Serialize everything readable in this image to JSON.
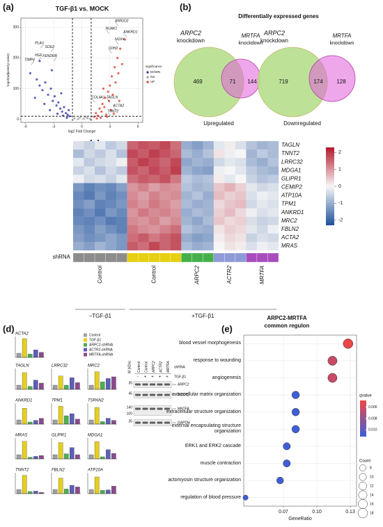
{
  "panel_labels": [
    "(a)",
    "(b)",
    "(c)",
    "(d)",
    "(e)"
  ],
  "chart_data": [
    {
      "type": "scatter",
      "title": "TGF-β1 vs. MOCK",
      "xlabel": "log2 Fold Change",
      "ylabel": "-log10(adjusted p-value)",
      "xlim": [
        -6.5,
        6.5
      ],
      "ylim": [
        -10,
        330
      ],
      "xticks": [
        -6,
        -3,
        0,
        3,
        6
      ],
      "yticks": [
        0,
        100,
        200,
        300
      ],
      "grid": true,
      "threshold_x": [
        -1,
        1
      ],
      "threshold_y": 10,
      "legend_title": "significance",
      "series": [
        {
          "name": "DOWN",
          "color": "#2a2fa6",
          "x": [
            -5.5,
            -4.8,
            -4.5,
            -4.2,
            -3.9,
            -3.6,
            -3.3,
            -3.1,
            -2.9,
            -2.7,
            -2.5,
            -2.3,
            -2.1,
            -1.9,
            -1.7,
            -1.5,
            -1.4,
            -1.3,
            -2.0,
            -2.6,
            -3.4,
            -4.0,
            -5.0,
            -2.2,
            -1.6,
            -4.5,
            -3.2
          ],
          "y": [
            150,
            130,
            110,
            95,
            120,
            80,
            100,
            60,
            75,
            45,
            55,
            35,
            25,
            40,
            20,
            15,
            30,
            10,
            12,
            18,
            30,
            50,
            70,
            85,
            5,
            190,
            160
          ]
        },
        {
          "name": "NS",
          "color": "#9a9a9a",
          "x": [
            -0.8,
            -0.4,
            0.2,
            0.6,
            -0.2,
            0.9,
            0.4
          ],
          "y": [
            3,
            1,
            2,
            4,
            6,
            1,
            8
          ]
        },
        {
          "name": "UP",
          "color": "#d8352a",
          "x": [
            1.3,
            1.5,
            1.7,
            1.9,
            2.1,
            2.2,
            2.4,
            2.5,
            2.6,
            2.8,
            2.9,
            3.0,
            3.1,
            3.2,
            3.3,
            3.5,
            3.6,
            3.8,
            3.9,
            4.1,
            4.3,
            4.6,
            2.0,
            1.6,
            2.7,
            3.4,
            4.0,
            2.3
          ],
          "y": [
            8,
            20,
            12,
            35,
            25,
            50,
            40,
            70,
            15,
            90,
            60,
            110,
            30,
            140,
            80,
            170,
            120,
            200,
            150,
            230,
            180,
            260,
            5,
            3,
            8,
            18,
            60,
            100
          ]
        }
      ],
      "gene_labels": [
        {
          "text": "PLAU",
          "x": -4.4,
          "y": 232
        },
        {
          "text": "SOD2",
          "x": -3.3,
          "y": 220
        },
        {
          "text": "HGF",
          "x": -4.6,
          "y": 193
        },
        {
          "text": "TIMP4",
          "x": -5.4,
          "y": 178
        },
        {
          "text": "FENDRR",
          "x": -3.0,
          "y": 190
        },
        {
          "text": "AMIGO2",
          "x": 3.9,
          "y": 305
        },
        {
          "text": "NUAK1",
          "x": 2.9,
          "y": 280
        },
        {
          "text": "ANKRD1",
          "x": 4.8,
          "y": 268
        },
        {
          "text": "NOX4",
          "x": 3.9,
          "y": 245
        },
        {
          "text": "CDH2",
          "x": 3.2,
          "y": 215
        },
        {
          "text": "COL4A1",
          "x": 1.4,
          "y": 55
        },
        {
          "text": "TAGLN",
          "x": 3.0,
          "y": 55
        },
        {
          "text": "ACTA2",
          "x": 3.7,
          "y": 28
        },
        {
          "text": "TNNT2",
          "x": 3.1,
          "y": 10
        }
      ]
    },
    {
      "type": "venn",
      "title": "Differentially expressed genes",
      "left_set": [
        "ARPC2",
        "knockdown"
      ],
      "right_set": [
        "MRTFA",
        "knockdown"
      ],
      "left_color": "#b6df8c",
      "right_color": "#e25fdb",
      "diagrams": [
        {
          "caption": "Upregulated",
          "left_only": 469,
          "both": 71,
          "right_only": 144
        },
        {
          "caption": "Downregulated",
          "left_only": 719,
          "both": 174,
          "right_only": 128
        }
      ]
    },
    {
      "type": "heatmap",
      "rows": [
        "TAGLN",
        "TNNT2",
        "LRRC32",
        "MDGA1",
        "GLIPR1",
        "CEMIP2",
        "ATP10A",
        "TPM1",
        "ANKRD1",
        "MRC2",
        "FBLN2",
        "ACTA2",
        "MRAS"
      ],
      "strip_title": "shRNA",
      "colorbar": {
        "lim": [
          -2.3,
          2.3
        ],
        "ticks": [
          2,
          1,
          0,
          -1,
          -2
        ],
        "low_color": "#1d4f9c",
        "mid_color": "#f6f6f6",
        "high_color": "#b2182b"
      },
      "conditions": [
        {
          "name": "−TGF-β1",
          "groups": [
            {
              "name": "Control",
              "italic": false,
              "strip_color": "#8c8c8c",
              "values": [
                [
                  -0.3,
                  -0.5,
                  -0.2,
                  -0.6,
                  -0.4
                ],
                [
                  -0.8,
                  -0.4,
                  -0.6,
                  -0.3,
                  -0.7
                ],
                [
                  -0.2,
                  -0.6,
                  -0.4,
                  -0.3,
                  -0.1
                ],
                [
                  -0.5,
                  -0.3,
                  -0.7,
                  -0.4,
                  -0.6
                ],
                [
                  -0.1,
                  -0.4,
                  -0.3,
                  -0.5,
                  -0.2
                ],
                [
                  -1.3,
                  -1.6,
                  -1.4,
                  -1.5,
                  -1.2
                ],
                [
                  -1.5,
                  -1.7,
                  -1.3,
                  -1.6,
                  -1.4
                ],
                [
                  -1.4,
                  -1.2,
                  -1.6,
                  -1.5,
                  -1.3
                ],
                [
                  -1.6,
                  -1.4,
                  -1.7,
                  -1.3,
                  -1.5
                ],
                [
                  -1.5,
                  -1.6,
                  -1.4,
                  -1.7,
                  -1.6
                ],
                [
                  -1.3,
                  -1.5,
                  -1.2,
                  -1.4,
                  -1.6
                ],
                [
                  -1.2,
                  -1.4,
                  -1.3,
                  -1.1,
                  -1.3
                ],
                [
                  -1.0,
                  -1.2,
                  -0.9,
                  -1.1,
                  -1.3
                ]
              ]
            }
          ]
        },
        {
          "name": "+TGF-β1",
          "groups": [
            {
              "name": "Control",
              "italic": false,
              "strip_color": "#e7cf12",
              "values": [
                [
                  1.5,
                  1.7,
                  1.6,
                  1.8,
                  1.4
                ],
                [
                  1.8,
                  1.6,
                  1.9,
                  1.7,
                  1.5
                ],
                [
                  1.6,
                  1.9,
                  1.7,
                  1.5,
                  1.8
                ],
                [
                  1.7,
                  1.5,
                  1.8,
                  1.6,
                  1.9
                ],
                [
                  1.4,
                  1.6,
                  1.5,
                  1.7,
                  1.3
                ],
                [
                  1.0,
                  1.2,
                  0.9,
                  1.1,
                  1.0
                ],
                [
                  1.1,
                  0.9,
                  1.2,
                  1.0,
                  1.1
                ],
                [
                  1.2,
                  1.0,
                  1.3,
                  1.1,
                  0.9
                ],
                [
                  1.0,
                  1.3,
                  1.1,
                  1.2,
                  1.0
                ],
                [
                  1.1,
                  1.0,
                  1.2,
                  0.9,
                  1.1
                ],
                [
                  1.3,
                  1.1,
                  1.0,
                  1.2,
                  1.4
                ],
                [
                  1.4,
                  1.6,
                  1.3,
                  1.5,
                  1.7
                ],
                [
                  1.6,
                  1.4,
                  1.8,
                  1.5,
                  1.7
                ]
              ]
            },
            {
              "name": "ARPC2",
              "italic": true,
              "strip_color": "#45b04a",
              "values": [
                [
                  -1.0,
                  -1.2,
                  -0.9
                ],
                [
                  -0.8,
                  -1.0,
                  -0.7
                ],
                [
                  -1.1,
                  -0.9,
                  -1.0
                ],
                [
                  -0.9,
                  -1.1,
                  -1.2
                ],
                [
                  -0.6,
                  -0.8,
                  -0.7
                ],
                [
                  -0.7,
                  -0.9,
                  -0.8
                ],
                [
                  -0.9,
                  -0.7,
                  -1.0
                ],
                [
                  -0.8,
                  -1.0,
                  -0.9
                ],
                [
                  -1.0,
                  -0.8,
                  -0.9
                ],
                [
                  -0.9,
                  -1.1,
                  -0.8
                ],
                [
                  -0.7,
                  -0.9,
                  -1.0
                ],
                [
                  -1.0,
                  -1.2,
                  -1.1
                ],
                [
                  -0.8,
                  -1.0,
                  -0.9
                ]
              ]
            },
            {
              "name": "ACTR2",
              "italic": true,
              "strip_color": "#8f9ad8",
              "values": [
                [
                  -0.2,
                  0.1,
                  -0.3
                ],
                [
                  0.2,
                  -0.1,
                  0.0
                ],
                [
                  -0.4,
                  -0.2,
                  -0.3
                ],
                [
                  -0.1,
                  0.0,
                  -0.2
                ],
                [
                  0.1,
                  -0.2,
                  0.0
                ],
                [
                  0.5,
                  0.7,
                  0.4
                ],
                [
                  0.6,
                  0.4,
                  0.5
                ],
                [
                  0.3,
                  0.5,
                  0.6
                ],
                [
                  0.4,
                  0.6,
                  0.3
                ],
                [
                  0.5,
                  0.3,
                  0.4
                ],
                [
                  0.2,
                  0.4,
                  0.3
                ],
                [
                  0.1,
                  0.3,
                  0.2
                ],
                [
                  0.0,
                  0.2,
                  0.1
                ]
              ]
            },
            {
              "name": "MRTFA",
              "italic": true,
              "strip_color": "#a84bbd",
              "values": [
                [
                  -0.7,
                  -0.9,
                  -0.8
                ],
                [
                  -0.9,
                  -0.6,
                  -0.8
                ],
                [
                  -0.8,
                  -1.0,
                  -0.7
                ],
                [
                  -0.6,
                  -0.8,
                  -0.9
                ],
                [
                  -0.5,
                  -0.7,
                  -0.6
                ],
                [
                  -0.2,
                  -0.4,
                  -0.3
                ],
                [
                  -0.3,
                  -0.1,
                  -0.2
                ],
                [
                  -0.4,
                  -0.2,
                  -0.3
                ],
                [
                  -0.1,
                  -0.3,
                  -0.2
                ],
                [
                  -0.3,
                  -0.5,
                  -0.4
                ],
                [
                  -0.2,
                  -0.4,
                  -0.1
                ],
                [
                  -0.5,
                  -0.3,
                  -0.4
                ],
                [
                  -0.3,
                  -0.1,
                  -0.2
                ]
              ]
            }
          ]
        }
      ]
    },
    {
      "type": "bar",
      "ylim": [
        0,
        5
      ],
      "series": [
        {
          "name": "Control",
          "color": "#a0a0a0"
        },
        {
          "name": "TGF-β1",
          "color": "#e6cf1c"
        },
        {
          "name": "ARPC2-shRNA",
          "color": "#4caf50"
        },
        {
          "name": "ACTR2-shRNA",
          "color": "#5c5fb8"
        },
        {
          "name": "MRTFA-shRNA",
          "color": "#8b4a8c"
        }
      ],
      "panels": [
        {
          "title": "ACTA2",
          "values": [
            1,
            4.5,
            0.8,
            1.8,
            1.2
          ]
        },
        {
          "title": "TAGLN",
          "values": [
            1,
            4.0,
            0.7,
            2.2,
            1.5
          ]
        },
        {
          "title": "LRRC32",
          "values": [
            1,
            3.2,
            1.0,
            2.8,
            1.6
          ]
        },
        {
          "title": "MRC2",
          "values": [
            1,
            4.2,
            1.8,
            2.6,
            3.0
          ]
        },
        {
          "title": "ANKRD1",
          "values": [
            1,
            3.8,
            0.5,
            0.9,
            1.4
          ]
        },
        {
          "title": "TPM1",
          "values": [
            1,
            4.3,
            2.0,
            2.5,
            1.2
          ]
        },
        {
          "title": "TSPAN2",
          "values": [
            1,
            4.0,
            0.6,
            1.4,
            0.9
          ]
        },
        {
          "title": "MRAS",
          "values": [
            1,
            4.2,
            0.4,
            0.6,
            0.8
          ]
        },
        {
          "title": "GLIPR1",
          "values": [
            1,
            3.9,
            1.2,
            2.7,
            1.0
          ]
        },
        {
          "title": "MDGA1",
          "values": [
            1,
            4.1,
            0.5,
            2.2,
            1.3
          ]
        },
        {
          "title": "TNNT2",
          "values": [
            1,
            4.4,
            0.5,
            0.6,
            0.3
          ]
        },
        {
          "title": "FBLN2",
          "values": [
            1,
            3.7,
            1.1,
            2.0,
            1.6
          ]
        },
        {
          "title": "ATP10A",
          "values": [
            1,
            4.0,
            0.8,
            0.9,
            1.8
          ]
        }
      ]
    },
    {
      "type": "dot",
      "title": [
        "ARPC2-MRTFA",
        "common regulon"
      ],
      "xlabel": "GeneRatio",
      "categories": [
        "blood vessel morphogenesis",
        "response to wounding",
        "angiogenesis",
        "extracellular matrix organization",
        "extracellular structure organization",
        "external encapsulating structure organization",
        "ERK1 and ERK2 cascade",
        "muscle contraction",
        "actomyosin structure organization",
        "regulation of blood pressure"
      ],
      "x": [
        0.128,
        0.114,
        0.114,
        0.081,
        0.081,
        0.081,
        0.073,
        0.073,
        0.067,
        0.036
      ],
      "qvalue": [
        0.0049,
        0.0062,
        0.0062,
        0.011,
        0.011,
        0.011,
        0.011,
        0.011,
        0.011,
        0.011
      ],
      "count": [
        18,
        16,
        16,
        11,
        11,
        11,
        10,
        10,
        9,
        5
      ],
      "xlim": [
        0.0344,
        0.1356
      ],
      "xticks": [
        0.07,
        {
          "value": 0.1,
          "label": "0.10"
        },
        0.13
      ],
      "grid": true,
      "color_title": "qvalue",
      "qlim": [
        0.0048,
        0.0112
      ],
      "qticks": [
        0.006,
        0.008,
        {
          "value": 0.01,
          "label": "0.010"
        }
      ],
      "low_color": "#ee4646",
      "high_color": "#3a5fd9",
      "size_title": "Count",
      "size_ticks": [
        8,
        10,
        12,
        14,
        16,
        18
      ]
    }
  ],
  "blot": {
    "marker_title": "M (kDa)",
    "lanes": [
      "Control",
      "Control",
      "ARPC2",
      "ACTR2",
      "MRTFA"
    ],
    "lane_italic": [
      false,
      false,
      true,
      true,
      true
    ],
    "lane_group": "shRNA",
    "treatment": "TGF-β1",
    "signs": [
      "-",
      "+",
      "+",
      "+",
      "+"
    ],
    "bands": [
      {
        "name": "ARPC2",
        "markers": [
          35
        ]
      },
      {
        "name": "ACTR2",
        "markers": [
          45
        ]
      },
      {
        "name": "MRTFA",
        "markers": [
          140,
          100
        ]
      },
      {
        "name": "GAPDH",
        "markers": [
          35
        ]
      }
    ]
  }
}
